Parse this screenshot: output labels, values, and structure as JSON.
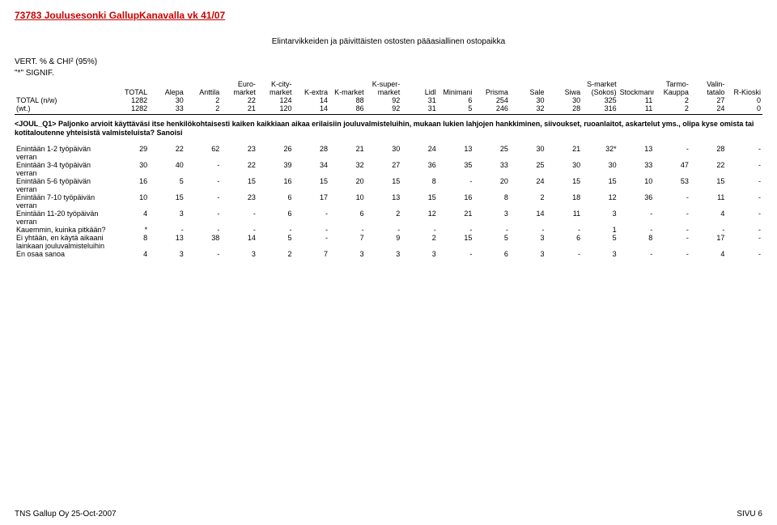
{
  "title": "73783 Joulusesonki GallupKanavalla vk 41/07",
  "subtitle": "Elintarvikkeiden ja päivittäisten ostosten pääasiallinen ostopaikka",
  "signif1": "VERT. % & CHI² (95%)",
  "signif2": "\"*\" SIGNIF.",
  "columns": [
    "TOTAL",
    "Alepa",
    "Anttila",
    "Euro-\nmarket",
    "K-city-\nmarket",
    "K-extra",
    "K-market",
    "K-super-\nmarket",
    "Lidl",
    "Minimani",
    "Prisma",
    "Sale",
    "Siwa",
    "S-market\n(Sokos)",
    "Stockmann",
    "Tarmo-\nKauppa",
    "Valin-\ntatalo",
    "R-Kioski"
  ],
  "total_rows": [
    {
      "label": "TOTAL (n/w)",
      "vals": [
        "1282",
        "30",
        "2",
        "22",
        "124",
        "14",
        "88",
        "92",
        "31",
        "6",
        "254",
        "30",
        "30",
        "325",
        "11",
        "2",
        "27",
        "0"
      ]
    },
    {
      "label": "(wt.)",
      "vals": [
        "1282",
        "33",
        "2",
        "21",
        "120",
        "14",
        "86",
        "92",
        "31",
        "5",
        "246",
        "32",
        "28",
        "316",
        "11",
        "2",
        "24",
        "0"
      ]
    }
  ],
  "question": "<JOUL_Q1> Paljonko arvioit käyttäväsi itse henkilökohtaisesti kaiken kaikkiaan aikaa erilaisiin jouluvalmisteluihin, mukaan lukien lahjojen hankkiminen, siivoukset, ruoanlaitot, askartelut yms., olipa kyse omista tai kotitaloutenne yhteisistä valmisteluista? Sanoisi",
  "data_rows": [
    {
      "label": "Enintään 1-2 työpäivän verran",
      "vals": [
        "29",
        "22",
        "62",
        "23",
        "26",
        "28",
        "21",
        "30",
        "24",
        "13",
        "25",
        "30",
        "21",
        "32*",
        "13",
        "-",
        "28",
        "-"
      ]
    },
    {
      "label": "Enintään 3-4 työpäivän verran",
      "vals": [
        "30",
        "40",
        "-",
        "22",
        "39",
        "34",
        "32",
        "27",
        "36",
        "35",
        "33",
        "25",
        "30",
        "30",
        "33",
        "47",
        "22",
        "-"
      ]
    },
    {
      "label": "Enintään 5-6 työpäivän verran",
      "vals": [
        "16",
        "5",
        "-",
        "15",
        "16",
        "15",
        "20",
        "15",
        "8",
        "-",
        "20",
        "24",
        "15",
        "15",
        "10",
        "53",
        "15",
        "-"
      ]
    },
    {
      "label": "Enintään 7-10 työpäivän verran",
      "vals": [
        "10",
        "15",
        "-",
        "23",
        "6",
        "17",
        "10",
        "13",
        "15",
        "16",
        "8",
        "2",
        "18",
        "12",
        "36",
        "-",
        "11",
        "-"
      ]
    },
    {
      "label": "Enintään 11-20 työpäivän verran",
      "vals": [
        "4",
        "3",
        "-",
        "-",
        "6",
        "-",
        "6",
        "2",
        "12",
        "21",
        "3",
        "14",
        "11",
        "3",
        "-",
        "-",
        "4",
        "-"
      ]
    },
    {
      "label": "Kauemmin, kuinka pitkään?",
      "vals": [
        "*",
        "-",
        "-",
        "-",
        "-",
        "-",
        "-",
        "-",
        "-",
        "-",
        "-",
        "-",
        "-",
        "1",
        "-",
        "-",
        "-",
        "-"
      ]
    },
    {
      "label": "Ei yhtään, en käytä aikaani lainkaan jouluvalmisteluihin",
      "vals": [
        "8",
        "13",
        "38",
        "14",
        "5",
        "-",
        "7",
        "9",
        "2",
        "15",
        "5",
        "3",
        "6",
        "5",
        "8",
        "-",
        "17",
        "-"
      ]
    },
    {
      "label": "En osaa sanoa",
      "vals": [
        "4",
        "3",
        "-",
        "3",
        "2",
        "7",
        "3",
        "3",
        "3",
        "-",
        "6",
        "3",
        "-",
        "3",
        "-",
        "-",
        "4",
        "-"
      ]
    }
  ],
  "footer_left": "TNS Gallup Oy 25-Oct-2007",
  "footer_right": "SIVU 6"
}
